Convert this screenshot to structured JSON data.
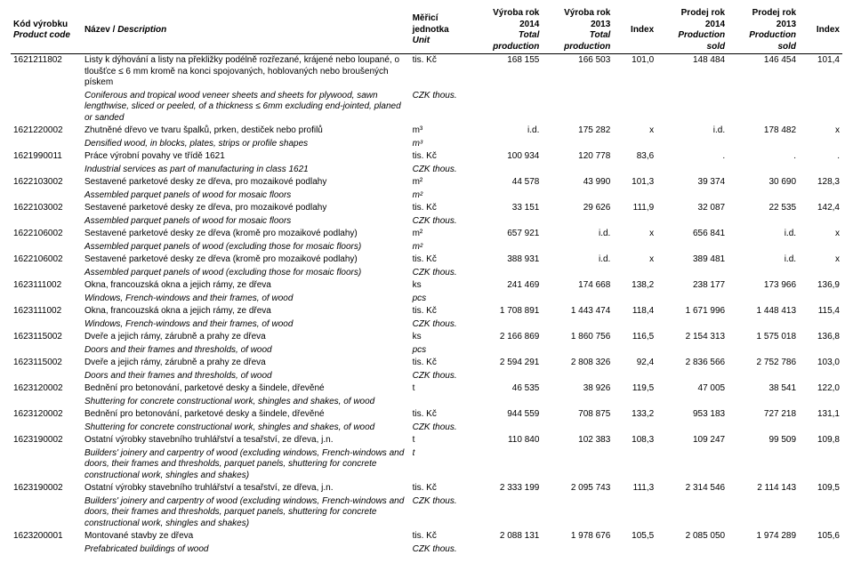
{
  "headers": {
    "code": {
      "cz": "Kód výrobku",
      "en": "Product code"
    },
    "desc": {
      "cz": "Název / ",
      "en": "Description"
    },
    "unit": {
      "cz": "Měřicí jednotka",
      "en": "Unit"
    },
    "p2014": {
      "cz": "Výroba  rok 2014",
      "en": "Total production"
    },
    "p2013": {
      "cz": "Výroba  rok 2013",
      "en": "Total production"
    },
    "idx1": {
      "cz": "Index",
      "en": ""
    },
    "s2014": {
      "cz": "Prodej rok 2014",
      "en": "Production sold"
    },
    "s2013": {
      "cz": "Prodej rok 2013",
      "en": "Production sold"
    },
    "idx2": {
      "cz": "Index",
      "en": ""
    }
  },
  "rows": [
    {
      "code": "1621211802",
      "desc_cz": "Listy k dýhování a listy na překližky podélně rozřezané, krájené nebo loupané, o tloušťce ≤ 6 mm kromě na konci spojovaných, hoblovaných nebo broušených pískem",
      "desc_en": "Coniferous and tropical wood veneer sheets and sheets for plywood, sawn lengthwise, sliced or peeled, of a thickness ≤ 6mm excluding end-jointed, planed or sanded",
      "unit_cz": "tis. Kč",
      "unit_en": "CZK thous.",
      "p2014": "168 155",
      "p2013": "166 503",
      "idx1": "101,0",
      "s2014": "148 484",
      "s2013": "146 454",
      "idx2": "101,4"
    },
    {
      "code": "1621220002",
      "desc_cz": "Zhutněné dřevo ve tvaru špalků, prken, destiček nebo profilů",
      "desc_en": "Densified wood, in blocks, plates, strips or profile shapes",
      "unit_cz": "m³",
      "unit_en": "m³",
      "p2014": "i.d.",
      "p2013": "175 282",
      "idx1": "x",
      "s2014": "i.d.",
      "s2013": "178 482",
      "idx2": "x"
    },
    {
      "code": "1621990011",
      "desc_cz": "Práce výrobní povahy ve třídě 1621",
      "desc_en": "Industrial services as part of manufacturing in class 1621",
      "unit_cz": "tis. Kč",
      "unit_en": "CZK thous.",
      "p2014": "100 934",
      "p2013": "120 778",
      "idx1": "83,6",
      "s2014": ".",
      "s2013": ".",
      "idx2": "."
    },
    {
      "code": "1622103002",
      "desc_cz": "Sestavené parketové desky ze dřeva, pro mozaikové podlahy",
      "desc_en": "Assembled parquet panels of wood for mosaic floors",
      "unit_cz": "m²",
      "unit_en": "m²",
      "p2014": "44 578",
      "p2013": "43 990",
      "idx1": "101,3",
      "s2014": "39 374",
      "s2013": "30 690",
      "idx2": "128,3"
    },
    {
      "code": "1622103002",
      "desc_cz": "Sestavené parketové desky ze dřeva, pro mozaikové podlahy",
      "desc_en": "Assembled parquet panels of wood for mosaic floors",
      "unit_cz": "tis. Kč",
      "unit_en": "CZK thous.",
      "p2014": "33 151",
      "p2013": "29 626",
      "idx1": "111,9",
      "s2014": "32 087",
      "s2013": "22 535",
      "idx2": "142,4"
    },
    {
      "code": "1622106002",
      "desc_cz": "Sestavené parketové desky ze dřeva (kromě pro mozaikové podlahy)",
      "desc_en": "Assembled parquet panels of wood (excluding those for mosaic floors)",
      "unit_cz": "m²",
      "unit_en": "m²",
      "p2014": "657 921",
      "p2013": "i.d.",
      "idx1": "x",
      "s2014": "656 841",
      "s2013": "i.d.",
      "idx2": "x"
    },
    {
      "code": "1622106002",
      "desc_cz": "Sestavené parketové desky ze dřeva (kromě pro mozaikové podlahy)",
      "desc_en": "Assembled parquet panels of wood (excluding those for mosaic floors)",
      "unit_cz": "tis. Kč",
      "unit_en": "CZK thous.",
      "p2014": "388 931",
      "p2013": "i.d.",
      "idx1": "x",
      "s2014": "389 481",
      "s2013": "i.d.",
      "idx2": "x"
    },
    {
      "code": "1623111002",
      "desc_cz": "Okna, francouzská okna a jejich rámy, ze dřeva",
      "desc_en": "Windows, French-windows and their frames, of wood",
      "unit_cz": "ks",
      "unit_en": "pcs",
      "p2014": "241 469",
      "p2013": "174 668",
      "idx1": "138,2",
      "s2014": "238 177",
      "s2013": "173 966",
      "idx2": "136,9"
    },
    {
      "code": "1623111002",
      "desc_cz": "Okna, francouzská okna a jejich rámy, ze dřeva",
      "desc_en": "Windows, French-windows and their frames, of wood",
      "unit_cz": "tis. Kč",
      "unit_en": "CZK thous.",
      "p2014": "1 708 891",
      "p2013": "1 443 474",
      "idx1": "118,4",
      "s2014": "1 671 996",
      "s2013": "1 448 413",
      "idx2": "115,4"
    },
    {
      "code": "1623115002",
      "desc_cz": "Dveře a jejich rámy, zárubně a prahy ze dřeva",
      "desc_en": "Doors and their frames and thresholds, of wood",
      "unit_cz": "ks",
      "unit_en": "pcs",
      "p2014": "2 166 869",
      "p2013": "1 860 756",
      "idx1": "116,5",
      "s2014": "2 154 313",
      "s2013": "1 575 018",
      "idx2": "136,8"
    },
    {
      "code": "1623115002",
      "desc_cz": "Dveře a jejich rámy, zárubně a prahy ze dřeva",
      "desc_en": "Doors and their frames and thresholds, of wood",
      "unit_cz": "tis. Kč",
      "unit_en": "CZK thous.",
      "p2014": "2 594 291",
      "p2013": "2 808 326",
      "idx1": "92,4",
      "s2014": "2 836 566",
      "s2013": "2 752 786",
      "idx2": "103,0"
    },
    {
      "code": "1623120002",
      "desc_cz": "Bednění pro betonování, parketové desky a šindele, dřevěné",
      "desc_en": "Shuttering for concrete constructional work, shingles and shakes, of wood",
      "unit_cz": "t",
      "unit_en": "",
      "p2014": "46 535",
      "p2013": "38 926",
      "idx1": "119,5",
      "s2014": "47 005",
      "s2013": "38 541",
      "idx2": "122,0"
    },
    {
      "code": "1623120002",
      "desc_cz": "Bednění pro betonování, parketové desky a šindele, dřevěné",
      "desc_en": "Shuttering for concrete constructional work, shingles and shakes, of wood",
      "unit_cz": "tis. Kč",
      "unit_en": "CZK thous.",
      "p2014": "944 559",
      "p2013": "708 875",
      "idx1": "133,2",
      "s2014": "953 183",
      "s2013": "727 218",
      "idx2": "131,1"
    },
    {
      "code": "1623190002",
      "desc_cz": "Ostatní výrobky stavebního truhlářství a tesařství, ze dřeva, j.n.",
      "desc_en": "Builders' joinery and carpentry of wood (excluding windows, French-windows and doors, their frames and thresholds, parquet panels, shuttering for concrete constructional work, shingles and shakes)",
      "unit_cz": "t",
      "unit_en": "t",
      "p2014": "110 840",
      "p2013": "102 383",
      "idx1": "108,3",
      "s2014": "109 247",
      "s2013": "99 509",
      "idx2": "109,8"
    },
    {
      "code": "1623190002",
      "desc_cz": "Ostatní výrobky stavebního truhlářství a tesařství, ze dřeva, j.n.",
      "desc_en": "Builders' joinery and carpentry of wood (excluding windows, French-windows and doors, their frames and thresholds, parquet panels, shuttering for concrete constructional work, shingles and shakes)",
      "unit_cz": "tis. Kč",
      "unit_en": "CZK thous.",
      "p2014": "2 333 199",
      "p2013": "2 095 743",
      "idx1": "111,3",
      "s2014": "2 314 546",
      "s2013": "2 114 143",
      "idx2": "109,5"
    },
    {
      "code": "1623200001",
      "desc_cz": "Montované stavby ze dřeva",
      "desc_en": "Prefabricated buildings of wood",
      "unit_cz": "tis. Kč",
      "unit_en": "CZK thous.",
      "p2014": "2 088 131",
      "p2013": "1 978 676",
      "idx1": "105,5",
      "s2014": "2 085 050",
      "s2013": "1 974 289",
      "idx2": "105,6"
    }
  ]
}
